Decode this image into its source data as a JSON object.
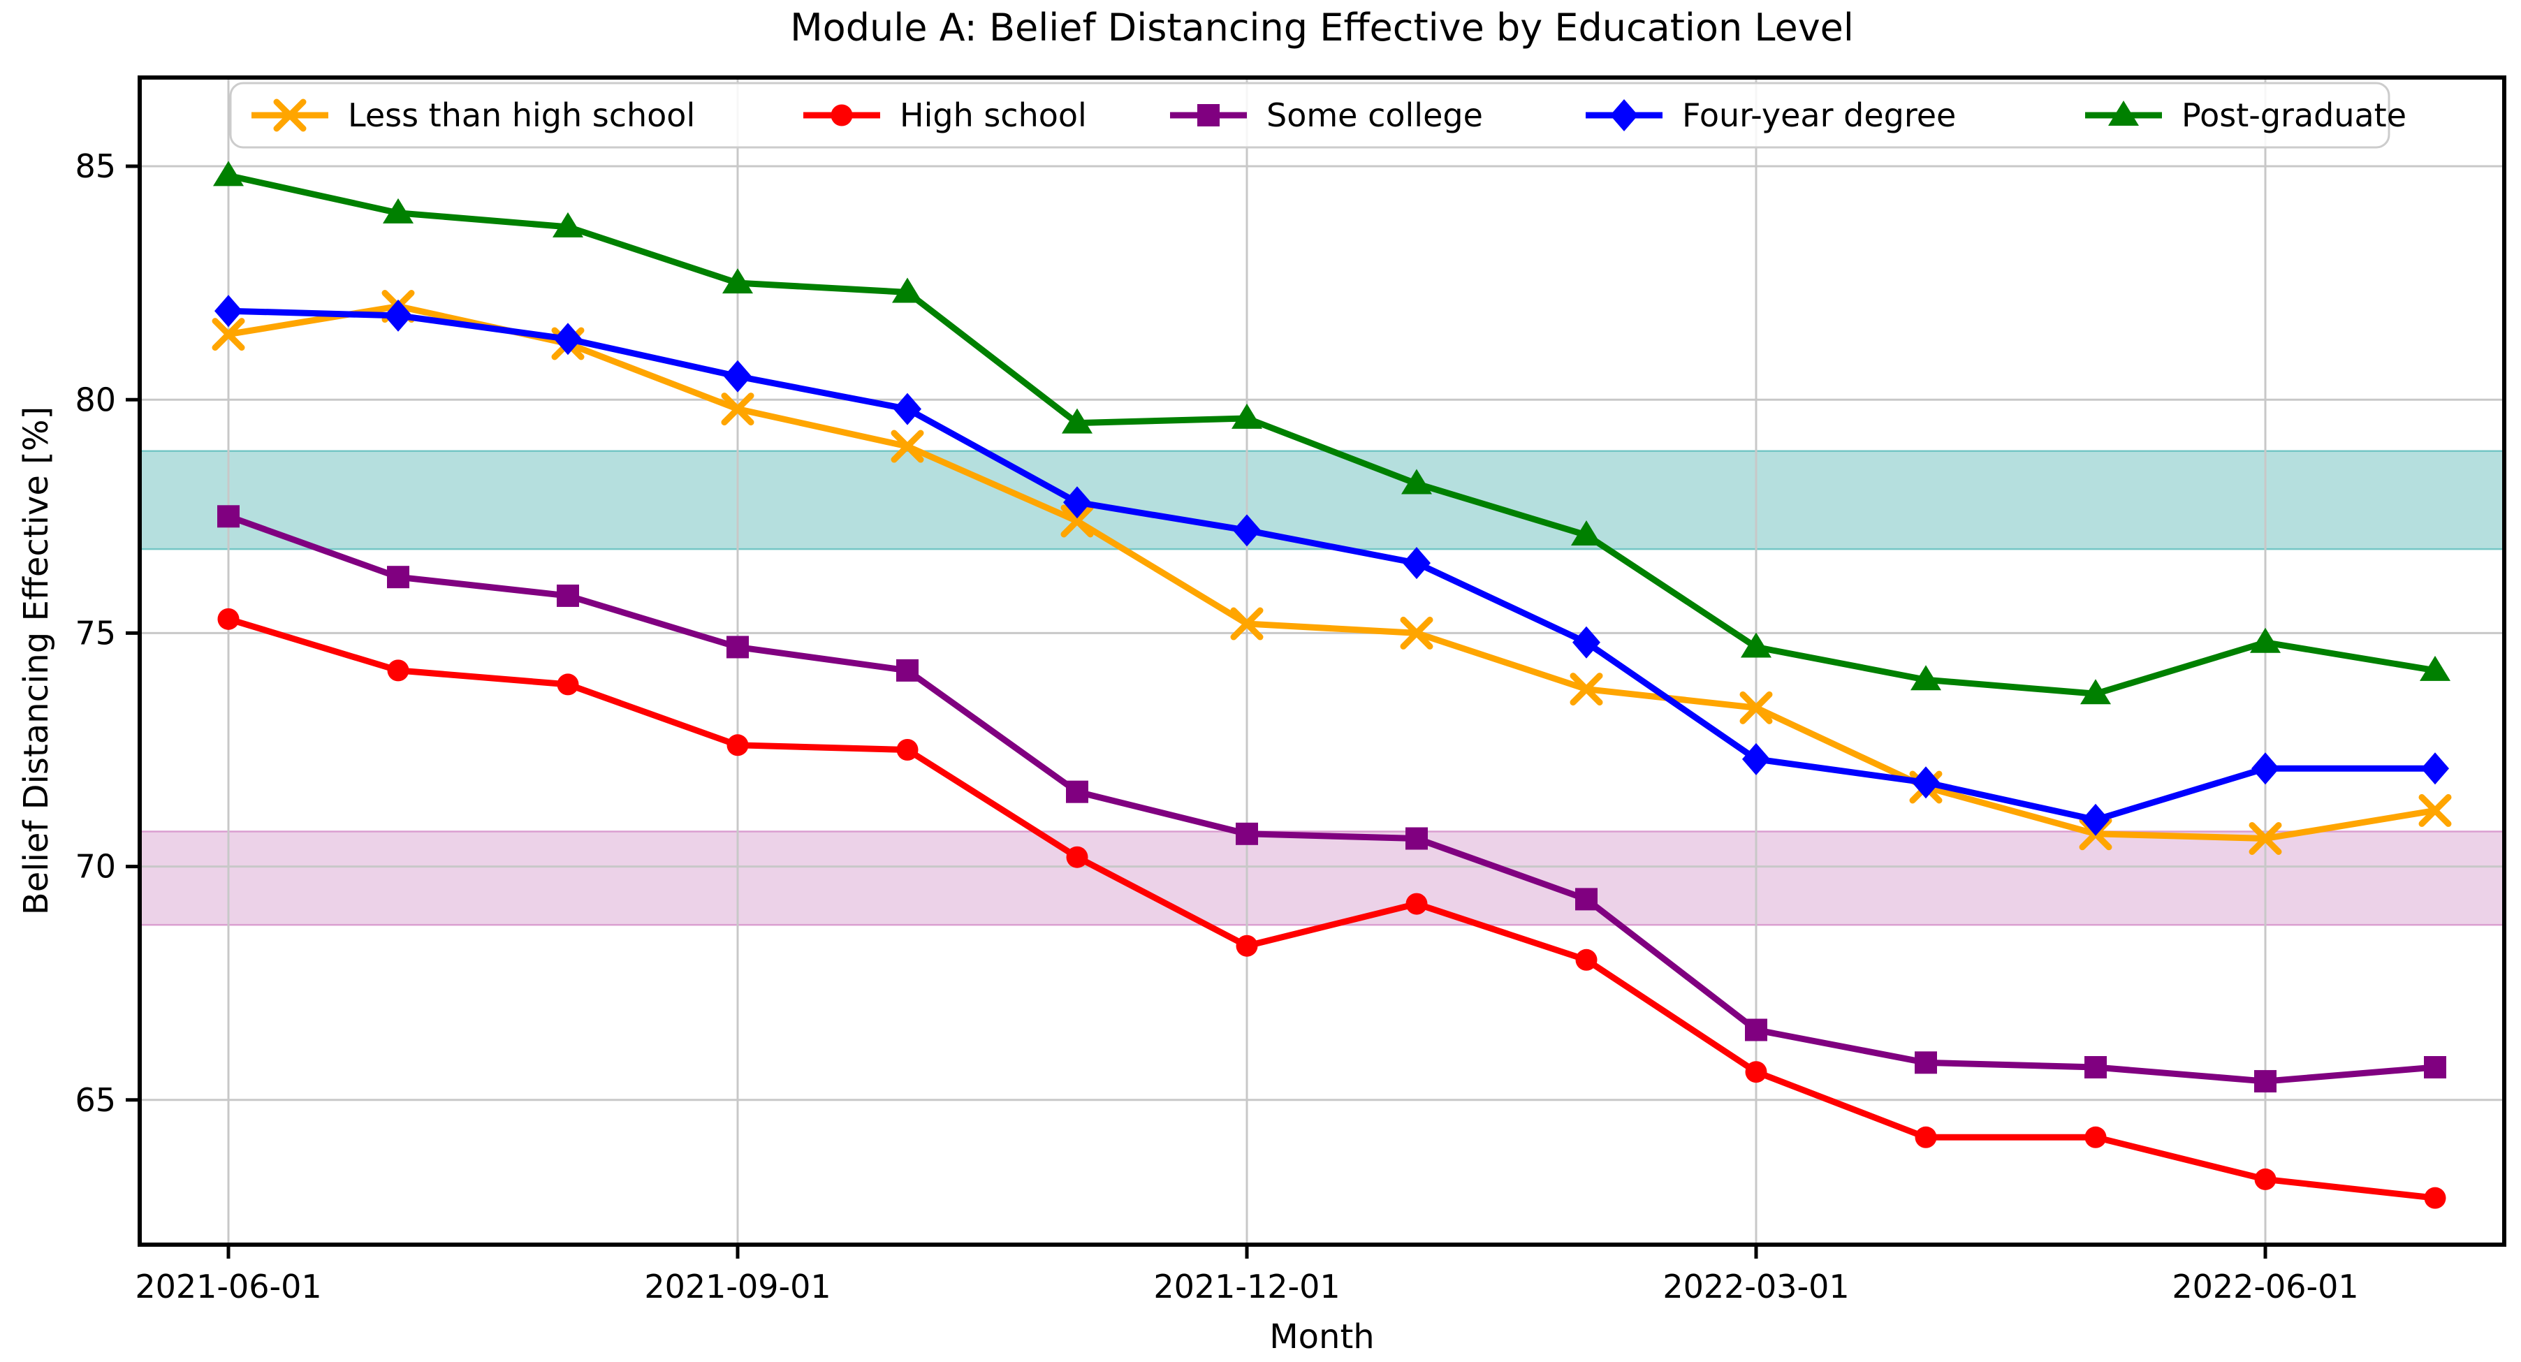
{
  "chart_data": {
    "type": "line",
    "title": "Module A: Belief Distancing Effective by Education Level",
    "xlabel": "Month",
    "ylabel": "Belief Distancing Effective [%]",
    "grid": true,
    "legend_position": "upper center inside, horizontal row",
    "x": [
      "2021-06-01",
      "2021-07-01",
      "2021-08-01",
      "2021-09-01",
      "2021-10-01",
      "2021-11-01",
      "2021-12-01",
      "2022-01-01",
      "2022-02-01",
      "2022-03-01",
      "2022-04-01",
      "2022-05-01",
      "2022-06-01",
      "2022-07-01"
    ],
    "x_tick_labels": [
      "2021-06-01",
      "2021-09-01",
      "2021-12-01",
      "2022-03-01",
      "2022-06-01"
    ],
    "y_ticks": [
      65,
      70,
      75,
      80,
      85
    ],
    "ylim": [
      61.9,
      86.9
    ],
    "series": [
      {
        "name": "Less than high school",
        "color": "#FFA500",
        "marker": "x",
        "values": [
          81.4,
          82.0,
          81.2,
          79.8,
          79.0,
          77.4,
          75.2,
          75.0,
          73.8,
          73.4,
          71.7,
          70.7,
          70.6,
          71.2
        ]
      },
      {
        "name": "High school",
        "color": "#FF0000",
        "marker": "circle",
        "values": [
          75.3,
          74.2,
          73.9,
          72.6,
          72.5,
          70.2,
          68.3,
          69.2,
          68.0,
          65.6,
          64.2,
          64.2,
          63.3,
          62.9
        ]
      },
      {
        "name": "Some college",
        "color": "#800080",
        "marker": "square",
        "values": [
          77.5,
          76.2,
          75.8,
          74.7,
          74.2,
          71.6,
          70.7,
          70.6,
          69.3,
          66.5,
          65.8,
          65.7,
          65.4,
          65.7
        ]
      },
      {
        "name": "Four-year degree",
        "color": "#0000FF",
        "marker": "diamond",
        "values": [
          81.9,
          81.8,
          81.3,
          80.5,
          79.8,
          77.8,
          77.2,
          76.5,
          74.8,
          72.3,
          71.8,
          71.0,
          72.1,
          72.1
        ]
      },
      {
        "name": "Post-graduate",
        "color": "#008000",
        "marker": "triangle",
        "values": [
          84.8,
          84.0,
          83.7,
          82.5,
          82.3,
          79.5,
          79.6,
          78.2,
          77.1,
          74.7,
          74.0,
          73.7,
          74.8,
          74.2
        ]
      }
    ],
    "bands": [
      {
        "label": "upper reference band",
        "ymin": 76.8,
        "ymax": 78.9,
        "fill": "#B5DFDE",
        "edge": "#74C6C5"
      },
      {
        "label": "lower reference band",
        "ymin": 68.75,
        "ymax": 70.75,
        "fill": "#ECD2E8",
        "edge": "#DA9ED0"
      }
    ],
    "colors": {
      "grid": "#C8C8C8",
      "spine": "#000000",
      "legend_border": "#CCCCCC",
      "background": "#FFFFFF"
    }
  }
}
